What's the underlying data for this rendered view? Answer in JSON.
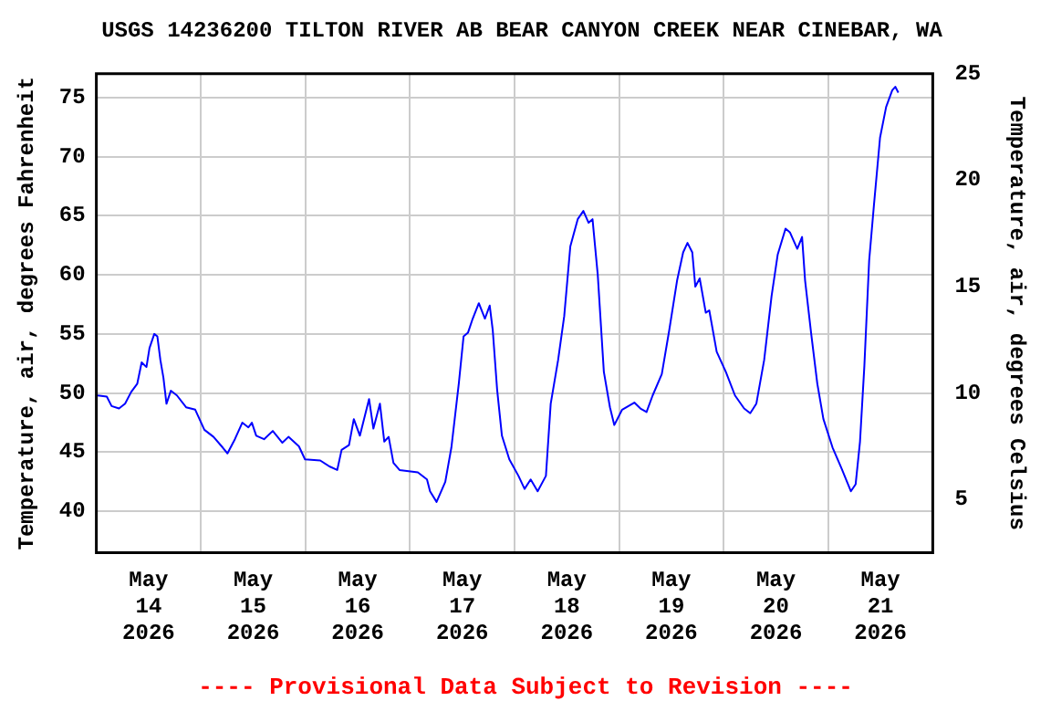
{
  "chart_data": {
    "type": "line",
    "title": "USGS 14236200 TILTON RIVER AB BEAR CANYON CREEK NEAR CINEBAR, WA",
    "ylabel": "Temperature, air, degrees Fahrenheit",
    "y2label": "Temperature, air, degrees Celsius",
    "annotations": [
      "---- Provisional Data Subject to Revision ----"
    ],
    "xlim": [
      "2026-05-14T00:00",
      "2026-05-22T00:00"
    ],
    "xticks": [
      {
        "value": "2026-05-14T12:00",
        "label": "May 14 2026"
      },
      {
        "value": "2026-05-15T00:00",
        "label": null
      },
      {
        "value": "2026-05-15T12:00",
        "label": "May 15 2026"
      },
      {
        "value": "2026-05-16T00:00",
        "label": null
      },
      {
        "value": "2026-05-16T12:00",
        "label": "May 16 2026"
      },
      {
        "value": "2026-05-17T00:00",
        "label": null
      },
      {
        "value": "2026-05-17T12:00",
        "label": "May 17 2026"
      },
      {
        "value": "2026-05-18T00:00",
        "label": null
      },
      {
        "value": "2026-05-18T12:00",
        "label": "May 18 2026"
      },
      {
        "value": "2026-05-19T00:00",
        "label": null
      },
      {
        "value": "2026-05-19T12:00",
        "label": "May 19 2026"
      },
      {
        "value": "2026-05-20T00:00",
        "label": null
      },
      {
        "value": "2026-05-20T12:00",
        "label": "May 20 2026"
      },
      {
        "value": "2026-05-21T00:00",
        "label": null
      },
      {
        "value": "2026-05-21T12:00",
        "label": "May 21 2026"
      }
    ],
    "ylim": [
      36.5,
      77
    ],
    "yticks": [
      40,
      45,
      50,
      55,
      60,
      65,
      70,
      75
    ],
    "y2lim": [
      2.5,
      25
    ],
    "y2ticks": [
      5,
      10,
      15,
      20,
      25
    ],
    "grid": true,
    "legend": false,
    "marker": "none",
    "line_style": "solid",
    "series": [
      {
        "color": "#0000ff",
        "x": [
          "2026-05-14T00:18",
          "2026-05-14T02:24",
          "2026-05-14T03:30",
          "2026-05-14T05:12",
          "2026-05-14T06:36",
          "2026-05-14T08:00",
          "2026-05-14T09:24",
          "2026-05-14T10:24",
          "2026-05-14T11:30",
          "2026-05-14T12:12",
          "2026-05-14T13:18",
          "2026-05-14T14:00",
          "2026-05-14T14:42",
          "2026-05-14T15:24",
          "2026-05-14T16:06",
          "2026-05-14T17:06",
          "2026-05-14T18:30",
          "2026-05-14T20:36",
          "2026-05-14T22:42",
          "2026-05-15T00:48",
          "2026-05-15T02:54",
          "2026-05-15T05:00",
          "2026-05-15T06:06",
          "2026-05-15T07:48",
          "2026-05-15T09:30",
          "2026-05-15T10:54",
          "2026-05-15T11:42",
          "2026-05-15T12:42",
          "2026-05-15T14:30",
          "2026-05-15T16:30",
          "2026-05-15T18:42",
          "2026-05-15T20:06",
          "2026-05-15T22:30",
          "2026-05-15T23:54",
          "2026-05-16T03:24",
          "2026-05-16T05:30",
          "2026-05-16T07:18",
          "2026-05-16T08:18",
          "2026-05-16T10:00",
          "2026-05-16T11:06",
          "2026-05-16T12:30",
          "2026-05-16T14:36",
          "2026-05-16T15:36",
          "2026-05-16T17:06",
          "2026-05-16T18:06",
          "2026-05-16T19:06",
          "2026-05-16T20:12",
          "2026-05-16T21:36",
          "2026-05-17T01:48",
          "2026-05-17T03:54",
          "2026-05-17T04:36",
          "2026-05-17T06:06",
          "2026-05-17T08:06",
          "2026-05-17T09:30",
          "2026-05-17T11:12",
          "2026-05-17T12:18",
          "2026-05-17T13:18",
          "2026-05-17T14:24",
          "2026-05-17T15:48",
          "2026-05-17T17:12",
          "2026-05-17T18:18",
          "2026-05-17T19:00",
          "2026-05-17T20:00",
          "2026-05-17T21:06",
          "2026-05-17T22:48",
          "2026-05-18T00:54",
          "2026-05-18T02:18",
          "2026-05-18T03:42",
          "2026-05-18T05:18",
          "2026-05-18T07:12",
          "2026-05-18T08:18",
          "2026-05-18T10:00",
          "2026-05-18T11:24",
          "2026-05-18T12:48",
          "2026-05-18T14:30",
          "2026-05-18T15:48",
          "2026-05-18T17:00",
          "2026-05-18T17:54",
          "2026-05-18T19:06",
          "2026-05-18T20:30",
          "2026-05-18T21:54",
          "2026-05-18T22:54",
          "2026-05-19T00:42",
          "2026-05-19T03:30",
          "2026-05-19T04:54",
          "2026-05-19T06:18",
          "2026-05-19T07:42",
          "2026-05-19T09:48",
          "2026-05-19T11:30",
          "2026-05-19T13:18",
          "2026-05-19T14:42",
          "2026-05-19T15:42",
          "2026-05-19T16:48",
          "2026-05-19T17:30",
          "2026-05-19T18:30",
          "2026-05-19T19:54",
          "2026-05-19T20:42",
          "2026-05-19T22:24",
          "2026-05-20T00:30",
          "2026-05-20T02:36",
          "2026-05-20T04:42",
          "2026-05-20T06:06",
          "2026-05-20T07:30",
          "2026-05-20T09:18",
          "2026-05-20T11:00",
          "2026-05-20T12:24",
          "2026-05-20T14:12",
          "2026-05-20T15:12",
          "2026-05-20T16:54",
          "2026-05-20T18:00",
          "2026-05-20T18:42",
          "2026-05-20T20:06",
          "2026-05-20T21:30",
          "2026-05-20T22:54",
          "2026-05-21T01:00",
          "2026-05-21T03:06",
          "2026-05-21T05:12",
          "2026-05-21T06:18",
          "2026-05-21T07:18",
          "2026-05-21T08:18",
          "2026-05-21T09:24",
          "2026-05-21T10:30",
          "2026-05-21T11:54",
          "2026-05-21T13:18",
          "2026-05-21T14:42",
          "2026-05-21T15:24",
          "2026-05-21T16:06"
        ],
        "values": [
          49.8,
          49.7,
          48.9,
          48.7,
          49.1,
          50.1,
          50.8,
          52.6,
          52.2,
          53.8,
          55,
          54.8,
          52.8,
          51.3,
          49.1,
          50.2,
          49.8,
          48.8,
          48.6,
          46.9,
          46.3,
          45.4,
          44.9,
          46.1,
          47.5,
          47.1,
          47.5,
          46.4,
          46.1,
          46.8,
          45.8,
          46.3,
          45.5,
          44.4,
          44.3,
          43.8,
          43.5,
          45.2,
          45.6,
          47.8,
          46.4,
          49.5,
          47,
          49.1,
          45.9,
          46.3,
          44.1,
          43.5,
          43.3,
          42.7,
          41.7,
          40.8,
          42.5,
          45.4,
          50.8,
          54.8,
          55.1,
          56.3,
          57.6,
          56.3,
          57.4,
          55.3,
          50.3,
          46.4,
          44.4,
          43,
          41.9,
          42.7,
          41.7,
          43,
          49.1,
          52.8,
          56.5,
          62.4,
          64.7,
          65.4,
          64.4,
          64.7,
          60,
          51.8,
          48.8,
          47.3,
          48.6,
          49.2,
          48.7,
          48.4,
          49.8,
          51.6,
          55.3,
          59.5,
          61.9,
          62.7,
          61.9,
          59,
          59.7,
          56.8,
          57,
          53.5,
          51.8,
          49.8,
          48.7,
          48.3,
          49.1,
          52.8,
          58.2,
          61.7,
          63.9,
          63.6,
          62.2,
          63.2,
          59.5,
          55,
          50.8,
          47.8,
          45.4,
          43.6,
          41.7,
          42.3,
          45.9,
          52.3,
          61.2,
          65.9,
          71.6,
          74.2,
          75.6,
          75.9,
          75.4
        ]
      }
    ]
  }
}
